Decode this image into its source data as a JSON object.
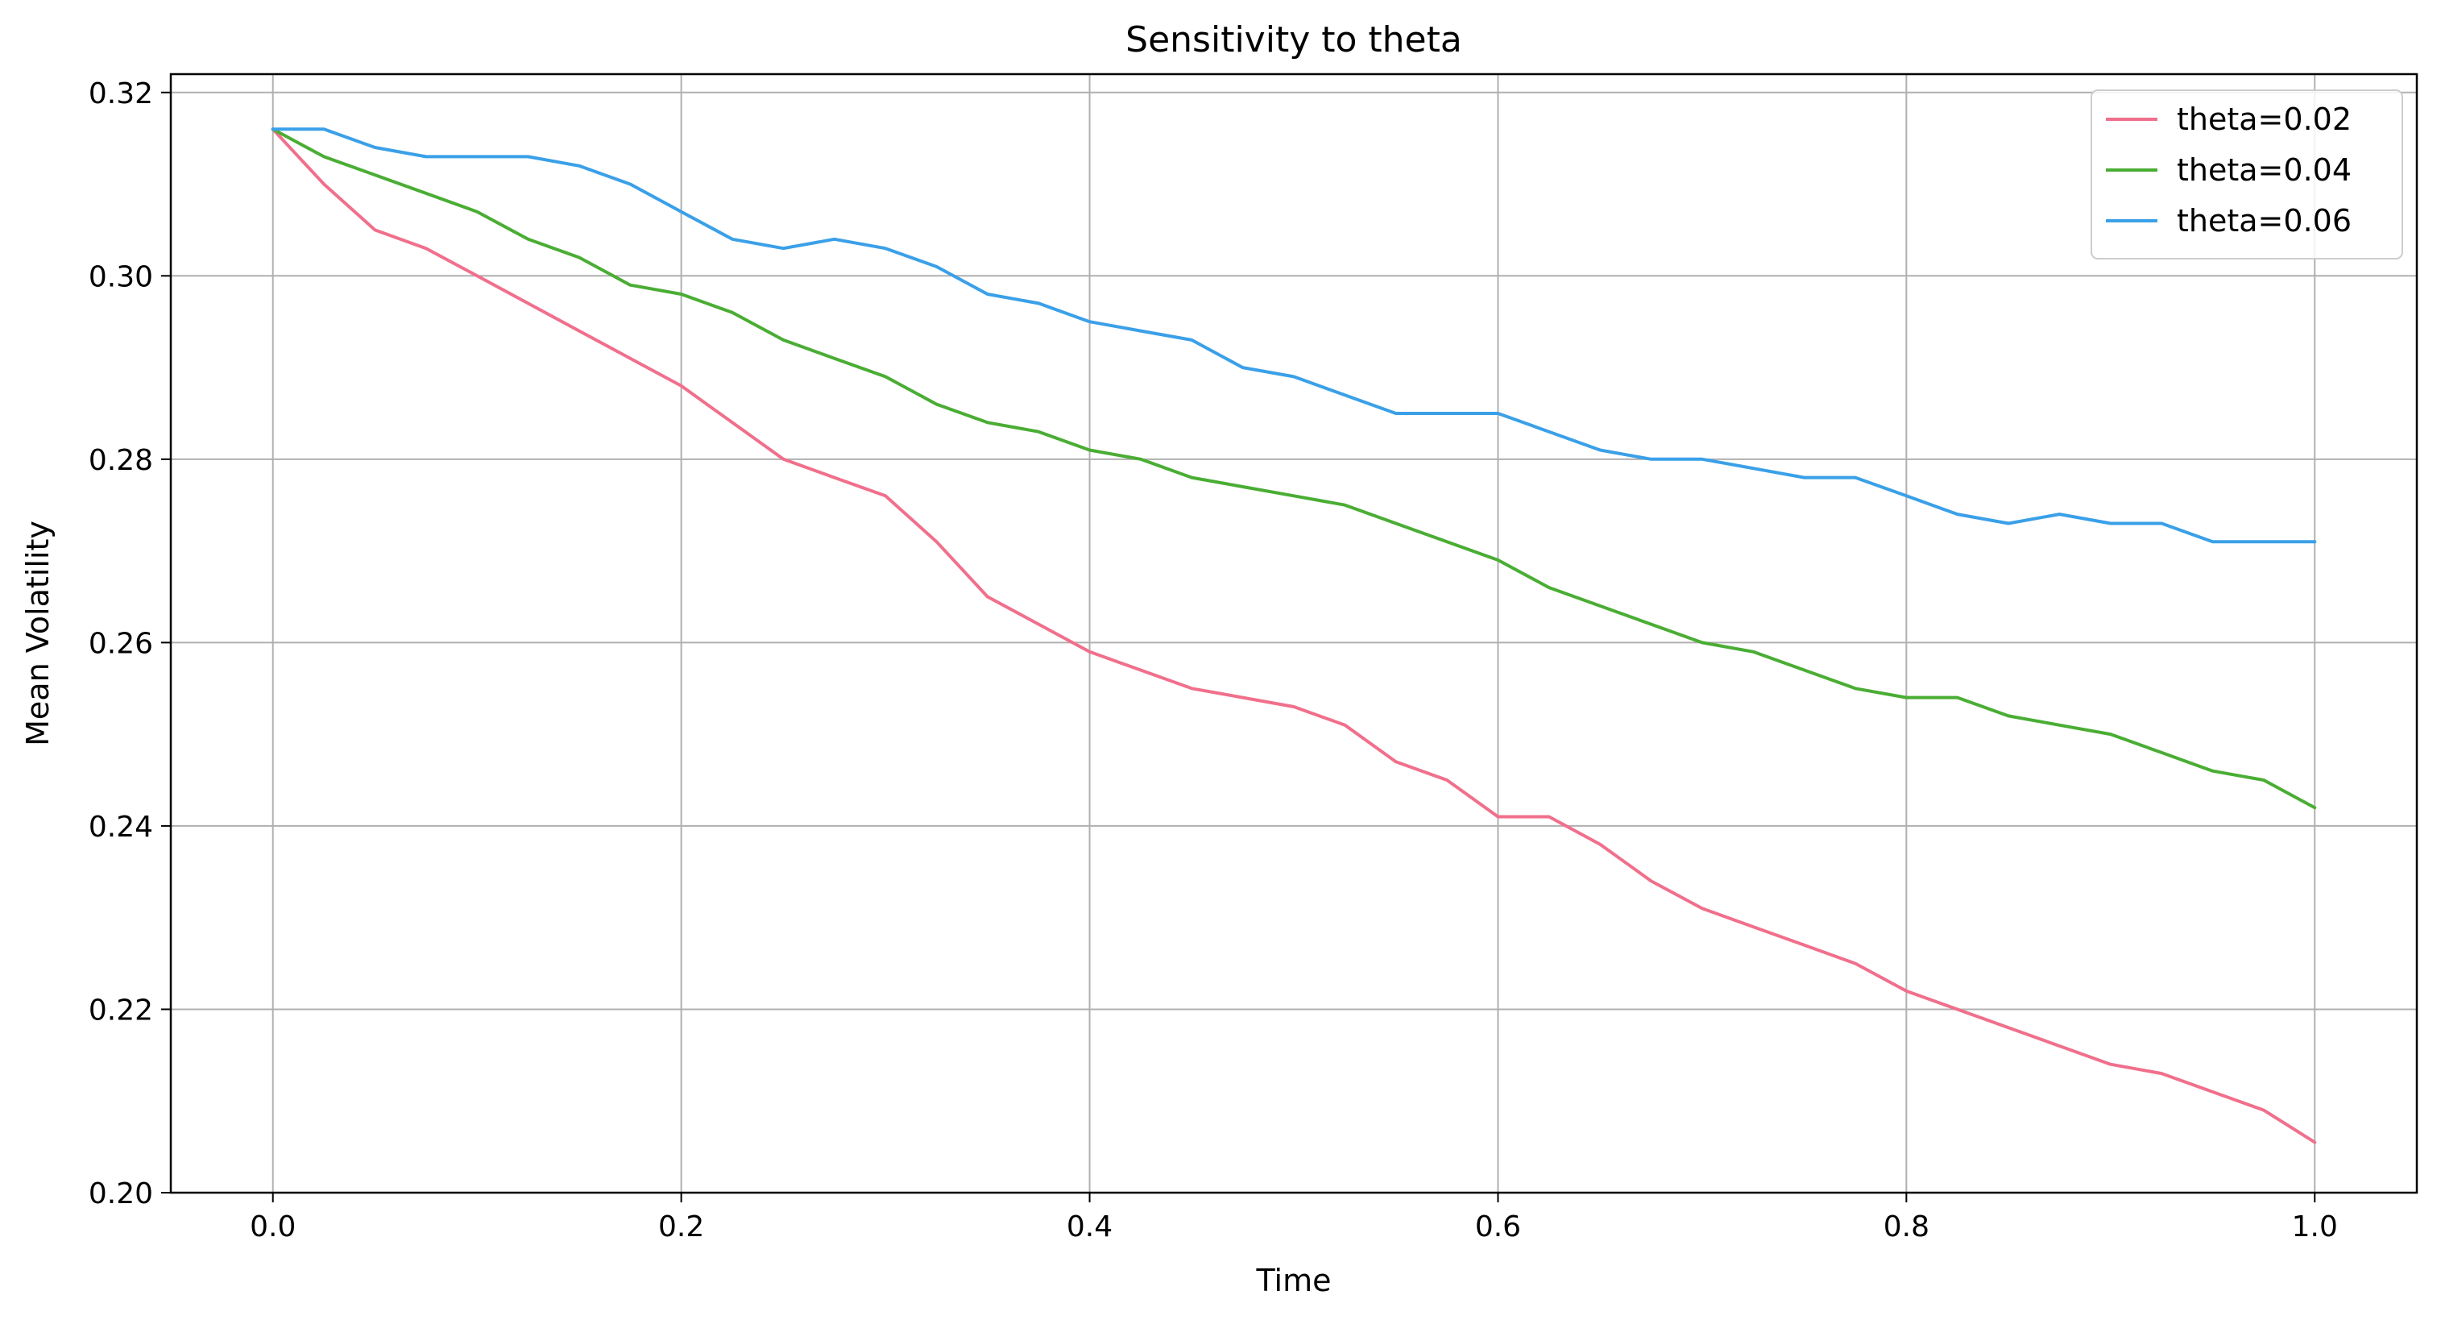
{
  "chart_data": {
    "type": "line",
    "title": "Sensitivity to theta",
    "xlabel": "Time",
    "ylabel": "Mean Volatility",
    "xlim": [
      -0.05,
      1.05
    ],
    "ylim": [
      0.2,
      0.322
    ],
    "xticks": [
      0.0,
      0.2,
      0.4,
      0.6,
      0.8,
      1.0
    ],
    "xtick_labels": [
      "0.0",
      "0.2",
      "0.4",
      "0.6",
      "0.8",
      "1.0"
    ],
    "yticks": [
      0.2,
      0.22,
      0.24,
      0.26,
      0.28,
      0.3,
      0.32
    ],
    "ytick_labels": [
      "0.20",
      "0.22",
      "0.24",
      "0.26",
      "0.28",
      "0.30",
      "0.32"
    ],
    "grid": true,
    "legend_position": "top-right",
    "x": [
      0.0,
      0.025,
      0.05,
      0.075,
      0.1,
      0.125,
      0.15,
      0.175,
      0.2,
      0.225,
      0.25,
      0.275,
      0.3,
      0.325,
      0.35,
      0.375,
      0.4,
      0.425,
      0.45,
      0.475,
      0.5,
      0.525,
      0.55,
      0.575,
      0.6,
      0.625,
      0.65,
      0.675,
      0.7,
      0.725,
      0.75,
      0.775,
      0.8,
      0.825,
      0.85,
      0.875,
      0.9,
      0.925,
      0.95,
      0.975,
      1.0
    ],
    "series": [
      {
        "name": "theta=0.02",
        "color": "#f0708c",
        "values": [
          0.316,
          0.31,
          0.305,
          0.303,
          0.3,
          0.297,
          0.294,
          0.291,
          0.288,
          0.284,
          0.28,
          0.278,
          0.276,
          0.271,
          0.265,
          0.262,
          0.259,
          0.257,
          0.255,
          0.254,
          0.253,
          0.251,
          0.247,
          0.245,
          0.241,
          0.241,
          0.238,
          0.234,
          0.231,
          0.229,
          0.227,
          0.225,
          0.222,
          0.22,
          0.218,
          0.216,
          0.214,
          0.213,
          0.211,
          0.209,
          0.2055
        ]
      },
      {
        "name": "theta=0.04",
        "color": "#4aad34",
        "values": [
          0.316,
          0.313,
          0.311,
          0.309,
          0.307,
          0.304,
          0.302,
          0.299,
          0.298,
          0.296,
          0.293,
          0.291,
          0.289,
          0.286,
          0.284,
          0.283,
          0.281,
          0.28,
          0.278,
          0.277,
          0.276,
          0.275,
          0.273,
          0.271,
          0.269,
          0.266,
          0.264,
          0.262,
          0.26,
          0.259,
          0.257,
          0.255,
          0.254,
          0.254,
          0.252,
          0.251,
          0.25,
          0.248,
          0.246,
          0.245,
          0.242
        ]
      },
      {
        "name": "theta=0.06",
        "color": "#3aa0e8",
        "values": [
          0.316,
          0.316,
          0.314,
          0.313,
          0.313,
          0.313,
          0.312,
          0.31,
          0.307,
          0.304,
          0.303,
          0.304,
          0.303,
          0.301,
          0.298,
          0.297,
          0.295,
          0.294,
          0.293,
          0.29,
          0.289,
          0.287,
          0.285,
          0.285,
          0.285,
          0.283,
          0.281,
          0.28,
          0.28,
          0.279,
          0.278,
          0.278,
          0.276,
          0.274,
          0.273,
          0.274,
          0.273,
          0.273,
          0.271,
          0.271,
          0.271
        ]
      }
    ]
  }
}
